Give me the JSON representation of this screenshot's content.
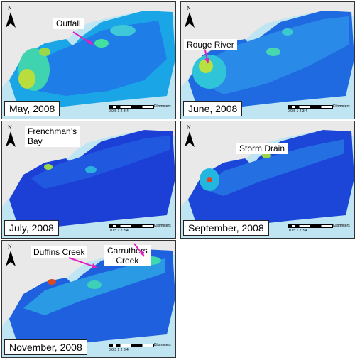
{
  "panels": [
    {
      "date": "May, 2008",
      "callouts": [
        "Outfall"
      ]
    },
    {
      "date": "June, 2008",
      "callouts": [
        "Rouge River"
      ]
    },
    {
      "date": "July, 2008",
      "callouts": [
        "Frenchman’s",
        "Bay"
      ]
    },
    {
      "date": "September, 2008",
      "callouts": [
        "Storm Drain"
      ]
    },
    {
      "date": "November, 2008",
      "callouts": [
        "Duffins Creek",
        "Carruthers",
        "Creek"
      ]
    }
  ],
  "north_label": "N",
  "scale": {
    "units": "Kilometers",
    "ticks": "0  0.5  1      2      3      4"
  },
  "colors": {
    "water": "#bfe4f2",
    "land": "#e8e8e8",
    "plume_low": "#1f3fd0",
    "plume_mid": "#19c2e0",
    "plume_high": "#d8d820",
    "arrow": "#e020c0"
  }
}
